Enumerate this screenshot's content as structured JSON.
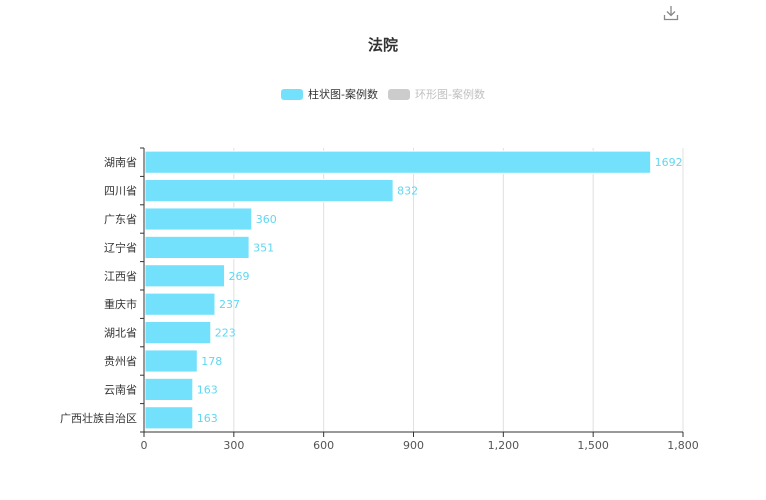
{
  "chart_data": {
    "type": "bar",
    "orientation": "horizontal",
    "title": "法院",
    "categories": [
      "湖南省",
      "四川省",
      "广东省",
      "辽宁省",
      "江西省",
      "重庆市",
      "湖北省",
      "贵州省",
      "云南省",
      "广西壮族自治区"
    ],
    "series": [
      {
        "name": "柱状图-案例数",
        "values": [
          1692,
          832,
          360,
          351,
          269,
          237,
          223,
          178,
          163,
          163
        ],
        "color": "#73e0fc",
        "visible": true
      },
      {
        "name": "环形图-案例数",
        "color": "#cccccc",
        "visible": false
      }
    ],
    "xlim": [
      0,
      1800
    ],
    "xticks": [
      "0",
      "300",
      "600",
      "900",
      "1,200",
      "1,500",
      "1,800"
    ],
    "xtick_values": [
      0,
      300,
      600,
      900,
      1200,
      1500,
      1800
    ],
    "grid": true,
    "legend_position": "top-center",
    "label_color": "#5fd7f2"
  },
  "toolbox": {
    "download_icon": "download-icon"
  }
}
